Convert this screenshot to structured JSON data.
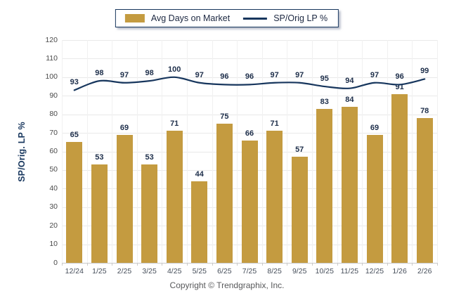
{
  "footer": "Copyright © Trendgraphix, Inc.",
  "colors": {
    "bar": "#C49B40",
    "line": "#17365D",
    "value_label": "#1D2E4A",
    "gridline": "#E9E9E9",
    "axis": "#C9C9C9"
  },
  "chart_data": {
    "type": "bar",
    "subtype": "bar+line combo",
    "title": "",
    "xlabel": "",
    "ylabel": "SP/Orig. LP %",
    "ylim": [
      0,
      120
    ],
    "ytick_step": 10,
    "grid": true,
    "legend_position": "top-center",
    "categories": [
      "12/24",
      "1/25",
      "2/25",
      "3/25",
      "4/25",
      "5/25",
      "6/25",
      "7/25",
      "8/25",
      "9/25",
      "10/25",
      "11/25",
      "12/25",
      "1/26",
      "2/26"
    ],
    "series": [
      {
        "name": "Avg Days on Market",
        "type": "bar",
        "color": "#C49B40",
        "values": [
          65,
          53,
          69,
          53,
          71,
          44,
          75,
          66,
          71,
          57,
          83,
          84,
          69,
          91,
          78
        ]
      },
      {
        "name": "SP/Orig LP %",
        "type": "line",
        "color": "#17365D",
        "values": [
          93,
          98,
          97,
          98,
          100,
          97,
          96,
          96,
          97,
          97,
          95,
          94,
          97,
          96,
          99
        ]
      }
    ]
  }
}
